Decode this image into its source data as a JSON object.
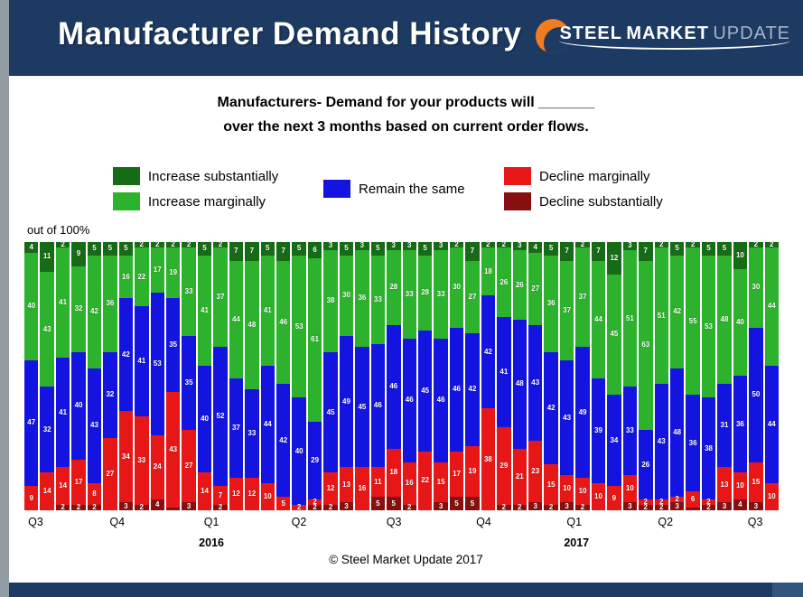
{
  "colors": {
    "navy": "#1d3a63",
    "orange": "#f07d22",
    "increase_substantially": "#166b16",
    "increase_marginally": "#2cb22c",
    "remain_same": "#1414e0",
    "decline_marginally": "#e81717",
    "decline_substantially": "#870f0f",
    "left_strip": "#939ba3"
  },
  "header": {
    "title": "Manufacturer Demand History",
    "logo": {
      "steel": "STEEL",
      "market": "MARKET",
      "update": "UPDATE"
    }
  },
  "subtitle": {
    "line1": "Manufacturers- Demand for your products will _______",
    "line2": "over the next 3 months based on current order flows."
  },
  "legend": {
    "items": [
      {
        "label": "Increase substantially",
        "color": "#166b16"
      },
      {
        "label": "Increase marginally",
        "color": "#2cb22c"
      },
      {
        "label": "Remain the same",
        "color": "#1414e0"
      },
      {
        "label": "Decline marginally",
        "color": "#e81717"
      },
      {
        "label": "Decline substantially",
        "color": "#870f0f"
      }
    ]
  },
  "axis_note": "out of 100%",
  "chart_data": {
    "type": "bar",
    "variant": "stacked-100-percent",
    "title": "Manufacturer Demand History",
    "note": "out of 100%",
    "ylim": [
      0,
      100
    ],
    "n_bars": 48,
    "stack_order_top_to_bottom": [
      "Increase substantially",
      "Increase marginally",
      "Remain the same",
      "Decline marginally",
      "Decline substantially"
    ],
    "series": [
      {
        "name": "Increase substantially",
        "color": "#166b16",
        "values": [
          4,
          11,
          2,
          9,
          5,
          5,
          5,
          2,
          2,
          2,
          2,
          5,
          2,
          7,
          7,
          5,
          7,
          5,
          6,
          3,
          5,
          3,
          5,
          3,
          3,
          5,
          3,
          2,
          7,
          2,
          2,
          3,
          4,
          5,
          7,
          2,
          7,
          12,
          3,
          7,
          2,
          5,
          2,
          5,
          5,
          10,
          2,
          2
        ]
      },
      {
        "name": "Increase marginally",
        "color": "#2cb22c",
        "values": [
          40,
          43,
          41,
          32,
          42,
          36,
          16,
          22,
          17,
          19,
          33,
          41,
          37,
          44,
          48,
          41,
          46,
          53,
          61,
          38,
          30,
          36,
          33,
          28,
          33,
          28,
          33,
          30,
          27,
          18,
          26,
          26,
          27,
          36,
          37,
          37,
          44,
          45,
          51,
          63,
          51,
          42,
          55,
          53,
          48,
          40,
          30,
          44
        ]
      },
      {
        "name": "Remain the same",
        "color": "#1414e0",
        "values": [
          47,
          32,
          41,
          40,
          43,
          32,
          42,
          41,
          53,
          35,
          35,
          40,
          52,
          37,
          33,
          44,
          42,
          40,
          29,
          45,
          49,
          45,
          46,
          46,
          46,
          45,
          46,
          46,
          42,
          42,
          41,
          48,
          43,
          42,
          43,
          49,
          39,
          34,
          33,
          26,
          43,
          48,
          36,
          38,
          31,
          36,
          50,
          44
        ]
      },
      {
        "name": "Decline marginally",
        "color": "#e81717",
        "values": [
          9,
          14,
          14,
          17,
          8,
          27,
          34,
          33,
          24,
          43,
          27,
          14,
          7,
          12,
          12,
          10,
          5,
          2,
          2,
          12,
          13,
          16,
          11,
          18,
          16,
          22,
          15,
          17,
          19,
          38,
          29,
          21,
          23,
          15,
          10,
          10,
          10,
          9,
          10,
          2,
          2,
          2,
          6,
          2,
          13,
          10,
          15,
          10
        ]
      },
      {
        "name": "Decline substantially",
        "color": "#870f0f",
        "values": [
          0,
          0,
          2,
          2,
          2,
          0,
          3,
          2,
          4,
          1,
          3,
          0,
          2,
          0,
          0,
          0,
          0,
          0,
          2,
          2,
          3,
          0,
          5,
          5,
          2,
          0,
          3,
          5,
          5,
          0,
          2,
          2,
          3,
          2,
          3,
          2,
          0,
          0,
          3,
          2,
          2,
          3,
          1,
          2,
          3,
          4,
          3,
          0
        ]
      }
    ],
    "x_axis": {
      "quarter_labels": [
        {
          "label": "Q3",
          "pos_pct": 1.5
        },
        {
          "label": "Q4",
          "pos_pct": 12.3
        },
        {
          "label": "Q1",
          "pos_pct": 24.8
        },
        {
          "label": "Q2",
          "pos_pct": 36.4
        },
        {
          "label": "Q3",
          "pos_pct": 49.0
        },
        {
          "label": "Q4",
          "pos_pct": 60.9
        },
        {
          "label": "Q1",
          "pos_pct": 72.9
        },
        {
          "label": "Q2",
          "pos_pct": 85.0
        },
        {
          "label": "Q3",
          "pos_pct": 96.9
        }
      ],
      "year_labels": [
        {
          "label": "2016",
          "pos_pct": 24.8
        },
        {
          "label": "2017",
          "pos_pct": 73.2
        }
      ]
    },
    "legend_position": "top",
    "grid": false
  },
  "footer": {
    "copyright": "© Steel Market Update 2017"
  }
}
